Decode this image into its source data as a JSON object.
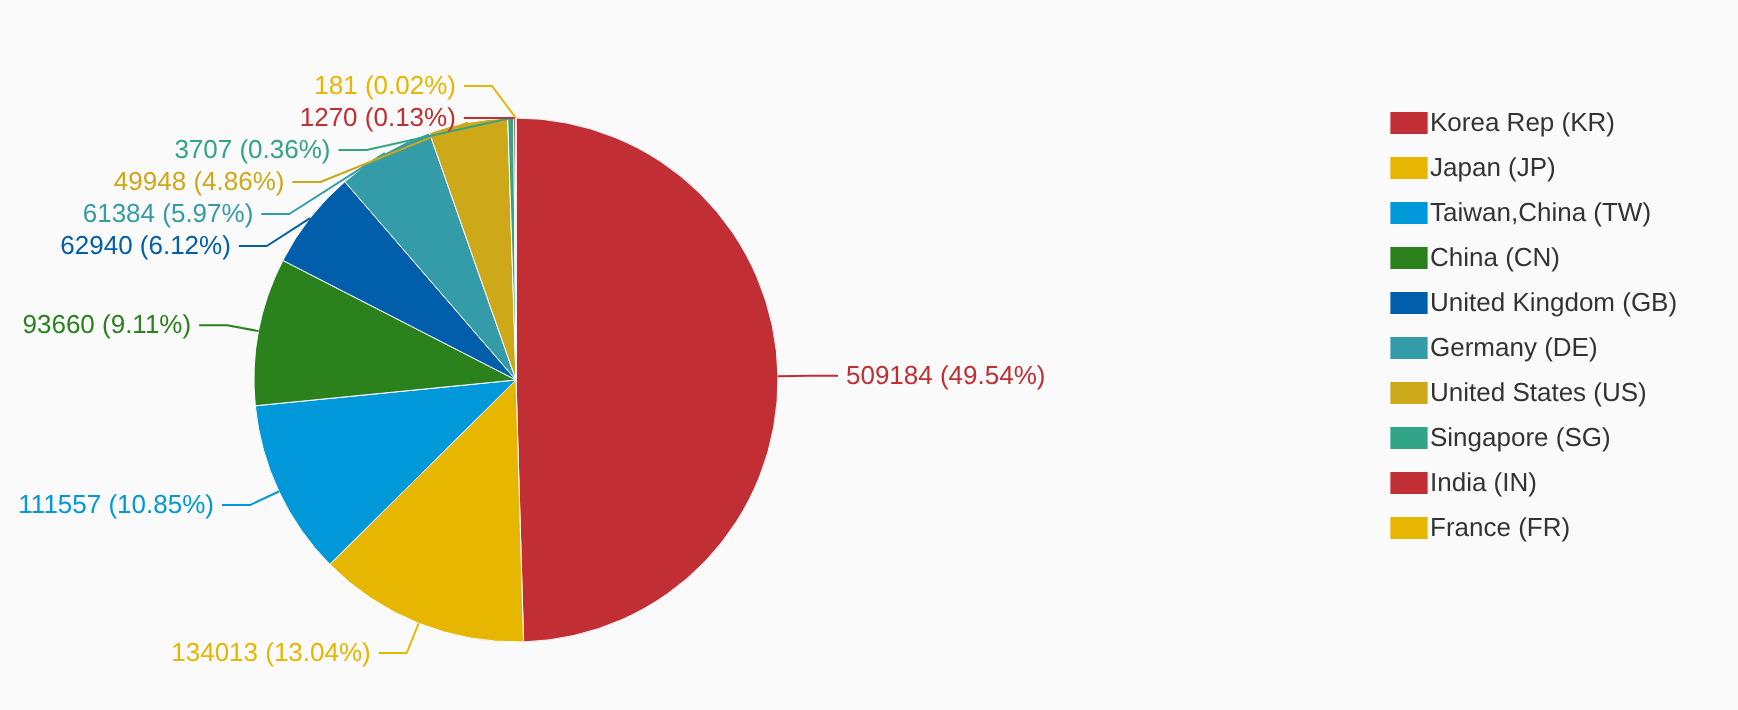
{
  "chart_data": {
    "type": "pie",
    "categories": [
      "Korea Rep (KR)",
      "Japan (JP)",
      "Taiwan,China (TW)",
      "China (CN)",
      "United Kingdom (GB)",
      "Germany (DE)",
      "United States (US)",
      "Singapore (SG)",
      "India (IN)",
      "France (FR)"
    ],
    "values": [
      509184,
      134013,
      111557,
      93660,
      62940,
      61384,
      49948,
      3707,
      1270,
      181
    ],
    "colors": [
      "#c12e34",
      "#e6b600",
      "#0098d9",
      "#2b821d",
      "#005eaa",
      "#339ca8",
      "#cda819",
      "#32a487",
      "#c12e34",
      "#e6b600"
    ],
    "value_labels": [
      "509184 (49.54%)",
      "134013 (13.04%)",
      "111557 (10.85%)",
      "93660 (9.11%)",
      "62940 (6.12%)",
      "61384 (5.97%)",
      "49948 (4.86%)",
      "3707 (0.36%)",
      "1270 (0.13%)",
      "181 (0.02%)"
    ],
    "legend": "right"
  }
}
